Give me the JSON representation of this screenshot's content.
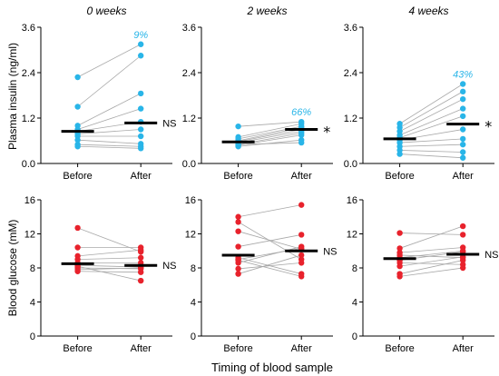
{
  "figure": {
    "x_title": "Timing of blood sample"
  },
  "rows": [
    {
      "ylabel": "Plasma insulin (ng/ml)",
      "color": "#29b5e8"
    },
    {
      "ylabel": "Blood glucose (mM)",
      "color": "#e8222c"
    }
  ],
  "chart_data": [
    {
      "type": "scatter",
      "title": "0 weeks",
      "ylabel": "Plasma insulin (ng/ml)",
      "categories": [
        "Before",
        "After"
      ],
      "ylim": [
        0,
        3.6
      ],
      "yticks": [
        "0.0",
        "1.2",
        "2.4",
        "3.6"
      ],
      "pairs": [
        [
          2.28,
          3.15
        ],
        [
          1.5,
          2.85
        ],
        [
          1.0,
          1.85
        ],
        [
          0.9,
          1.45
        ],
        [
          0.85,
          1.1
        ],
        [
          0.78,
          0.9
        ],
        [
          0.72,
          0.72
        ],
        [
          0.62,
          0.52
        ],
        [
          0.5,
          0.45
        ],
        [
          0.45,
          0.4
        ]
      ],
      "medians": [
        0.85,
        1.07
      ],
      "significance": "NS",
      "percent_label": "9%"
    },
    {
      "type": "scatter",
      "title": "2 weeks",
      "ylabel": "Plasma insulin (ng/ml)",
      "categories": [
        "Before",
        "After"
      ],
      "ylim": [
        0,
        3.6
      ],
      "yticks": [
        "0.0",
        "1.2",
        "2.4",
        "3.6"
      ],
      "pairs": [
        [
          0.98,
          1.1
        ],
        [
          0.7,
          1.05
        ],
        [
          0.65,
          0.98
        ],
        [
          0.6,
          0.95
        ],
        [
          0.58,
          0.9
        ],
        [
          0.55,
          0.85
        ],
        [
          0.5,
          0.8
        ],
        [
          0.48,
          0.75
        ],
        [
          0.45,
          0.62
        ],
        [
          0.5,
          0.55
        ]
      ],
      "medians": [
        0.57,
        0.9
      ],
      "significance": "*",
      "percent_label": "66%"
    },
    {
      "type": "scatter",
      "title": "4 weeks",
      "ylabel": "Plasma insulin (ng/ml)",
      "categories": [
        "Before",
        "After"
      ],
      "ylim": [
        0,
        3.6
      ],
      "yticks": [
        "0.0",
        "1.2",
        "2.4",
        "3.6"
      ],
      "pairs": [
        [
          1.05,
          2.1
        ],
        [
          0.95,
          1.9
        ],
        [
          0.85,
          1.7
        ],
        [
          0.75,
          1.45
        ],
        [
          0.68,
          1.25
        ],
        [
          0.62,
          0.9
        ],
        [
          0.55,
          0.65
        ],
        [
          0.45,
          0.5
        ],
        [
          0.35,
          0.3
        ],
        [
          0.25,
          0.15
        ]
      ],
      "medians": [
        0.65,
        1.04
      ],
      "significance": "*",
      "percent_label": "43%"
    },
    {
      "type": "scatter",
      "title": "",
      "ylabel": "Blood glucose (mM)",
      "categories": [
        "Before",
        "After"
      ],
      "ylim": [
        0,
        16
      ],
      "yticks": [
        "0",
        "4",
        "8",
        "12",
        "16"
      ],
      "pairs": [
        [
          12.7,
          9.9
        ],
        [
          10.4,
          10.4
        ],
        [
          9.4,
          10.1
        ],
        [
          9.0,
          9.2
        ],
        [
          8.6,
          8.6
        ],
        [
          8.3,
          8.1
        ],
        [
          8.0,
          7.9
        ],
        [
          7.8,
          8.0
        ],
        [
          7.6,
          7.5
        ],
        [
          8.2,
          6.5
        ]
      ],
      "medians": [
        8.5,
        8.3
      ],
      "significance": "NS",
      "percent_label": ""
    },
    {
      "type": "scatter",
      "title": "",
      "ylabel": "Blood glucose (mM)",
      "categories": [
        "Before",
        "After"
      ],
      "ylim": [
        0,
        16
      ],
      "yticks": [
        "0",
        "4",
        "8",
        "12",
        "16"
      ],
      "pairs": [
        [
          14.0,
          15.4
        ],
        [
          13.4,
          9.0
        ],
        [
          12.3,
          10.2
        ],
        [
          10.5,
          11.9
        ],
        [
          9.2,
          7.3
        ],
        [
          8.9,
          7.0
        ],
        [
          8.6,
          10.5
        ],
        [
          7.9,
          8.6
        ],
        [
          7.3,
          9.5
        ],
        [
          9.0,
          10.3
        ]
      ],
      "medians": [
        9.5,
        10.0
      ],
      "significance": "NS",
      "percent_label": ""
    },
    {
      "type": "scatter",
      "title": "",
      "ylabel": "Blood glucose (mM)",
      "categories": [
        "Before",
        "After"
      ],
      "ylim": [
        0,
        16
      ],
      "yticks": [
        "0",
        "4",
        "8",
        "12",
        "16"
      ],
      "pairs": [
        [
          12.1,
          11.9
        ],
        [
          10.3,
          12.9
        ],
        [
          9.8,
          10.4
        ],
        [
          9.5,
          9.2
        ],
        [
          9.2,
          10.0
        ],
        [
          8.9,
          9.9
        ],
        [
          8.6,
          8.4
        ],
        [
          8.2,
          9.3
        ],
        [
          7.3,
          8.9
        ],
        [
          7.0,
          8.0
        ]
      ],
      "medians": [
        9.1,
        9.6
      ],
      "significance": "NS",
      "percent_label": ""
    }
  ]
}
